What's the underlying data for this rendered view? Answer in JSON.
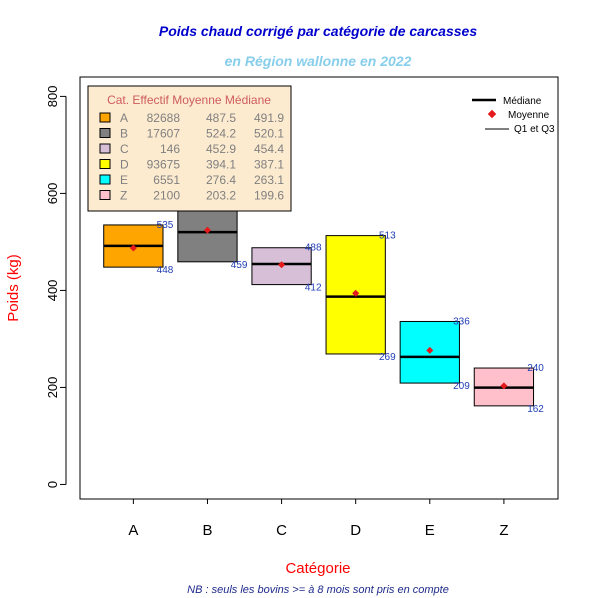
{
  "chart_data": {
    "type": "boxplot",
    "title": "Poids chaud corrigé par catégorie de carcasses",
    "subtitle": "en Région wallonne en 2022",
    "xlabel": "Catégorie",
    "ylabel": "Poids (kg)",
    "note": "NB : seuls les bovins >= à 8 mois sont pris en compte",
    "ylim": [
      -30,
      840
    ],
    "yticks": [
      0,
      200,
      400,
      600,
      800
    ],
    "categories": [
      "A",
      "B",
      "C",
      "D",
      "E",
      "Z"
    ],
    "colors": [
      "#FFA500",
      "#808080",
      "#D8BFD8",
      "#FFFF00",
      "#00FFFF",
      "#FFC0CB"
    ],
    "q1": [
      448,
      459,
      412,
      269,
      209,
      162
    ],
    "q3": [
      535,
      580,
      488,
      513,
      336,
      240
    ],
    "q1_labels": [
      "448",
      "459",
      "412",
      "269",
      "209",
      "162"
    ],
    "q3_labels": [
      "535",
      "",
      "488",
      "513",
      "336",
      "240"
    ],
    "median": [
      491.9,
      520.1,
      454.4,
      387.1,
      263.1,
      199.6
    ],
    "mean": [
      487.5,
      524.2,
      452.9,
      394.1,
      276.4,
      203.2
    ],
    "effectif": [
      82688,
      17607,
      146,
      93675,
      6551,
      2100
    ],
    "stats_table": {
      "header": "Cat. Effectif Moyenne Médiane",
      "rows": [
        [
          "A",
          "82688",
          "487.5",
          "491.9"
        ],
        [
          "B",
          "17607",
          "524.2",
          "520.1"
        ],
        [
          "C",
          "146",
          "452.9",
          "454.4"
        ],
        [
          "D",
          "93675",
          "394.1",
          "387.1"
        ],
        [
          "E",
          "6551",
          "276.4",
          "263.1"
        ],
        [
          "Z",
          "2100",
          "203.2",
          "199.6"
        ]
      ]
    },
    "legend": {
      "position": "top-right",
      "entries": [
        "Médiane",
        "Moyenne",
        "Q1 et Q3"
      ]
    },
    "grid": false
  }
}
